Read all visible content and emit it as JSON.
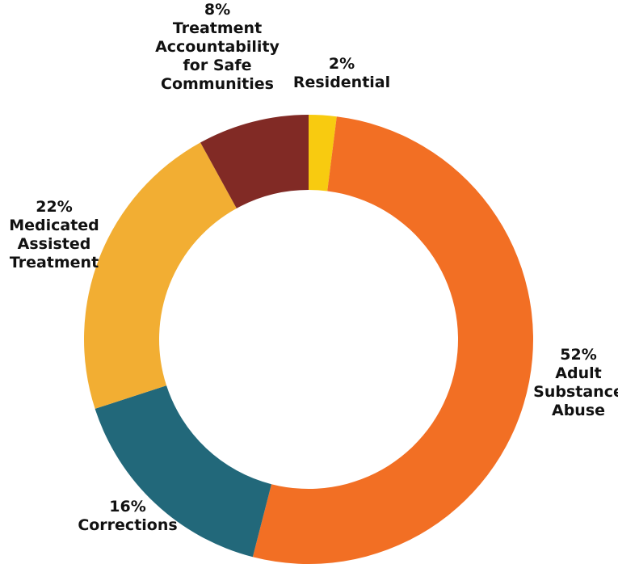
{
  "chart_data": {
    "type": "pie",
    "donut": true,
    "legend": "none",
    "slices": [
      {
        "label": "Residential",
        "value": 2,
        "display": "2%",
        "color": "#F8CB10"
      },
      {
        "label": "Adult Substance Abuse",
        "value": 52,
        "display": "52%",
        "color": "#F26F24"
      },
      {
        "label": "Corrections",
        "value": 16,
        "display": "16%",
        "color": "#22687A"
      },
      {
        "label": "Medicated Assisted Treatment",
        "value": 22,
        "display": "22%",
        "color": "#F2AE33"
      },
      {
        "label": "Treatment Accountability for Safe Communities",
        "value": 8,
        "display": "8%",
        "color": "#812A25"
      }
    ]
  }
}
